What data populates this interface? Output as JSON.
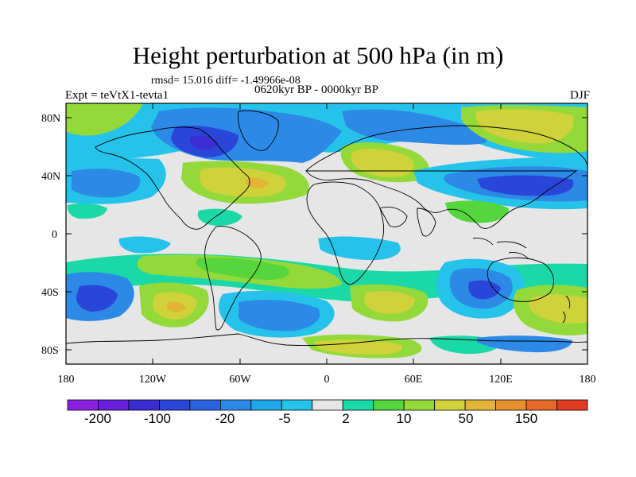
{
  "title": "Height perturbation at 500 hPa (in m)",
  "stats_line": "rmsd= 15.016 diff= -1.49966e-08",
  "period": "0620kyr BP - 0000kyr BP",
  "experiment": "Expt = teVtX1-tevta1",
  "season": "DJF",
  "y_ticks": [
    "80N",
    "40N",
    "0",
    "40S",
    "80S"
  ],
  "y_tick_values": [
    80,
    40,
    0,
    -40,
    -80
  ],
  "x_ticks": [
    "180",
    "120W",
    "60W",
    "0",
    "60E",
    "120E",
    "180"
  ],
  "x_tick_values": [
    -180,
    -120,
    -60,
    0,
    60,
    120,
    180
  ],
  "colorbar": {
    "colors": [
      "#8b21e0",
      "#6a1fe0",
      "#3c2cd4",
      "#2a46d8",
      "#2a63e0",
      "#2c8ae6",
      "#20a8ea",
      "#25c3ea",
      "#e6e6e6",
      "#1ad9a6",
      "#55d63c",
      "#93d93a",
      "#cfd23a",
      "#e3b437",
      "#e6902f",
      "#e86a2a",
      "#e23a22"
    ],
    "labels": [
      "-200",
      "-100",
      "-20",
      "-5",
      "2",
      "10",
      "50",
      "150"
    ]
  },
  "palette": {
    "deep_blue": "#2a46d8",
    "blue": "#2c8ae6",
    "light_blue": "#25c3ea",
    "neutral": "#e6e6e6",
    "teal_green": "#1ad9a6",
    "green": "#55d63c",
    "yellow_green": "#93d93a",
    "yellow": "#cfd23a",
    "orange": "#e3b437"
  }
}
